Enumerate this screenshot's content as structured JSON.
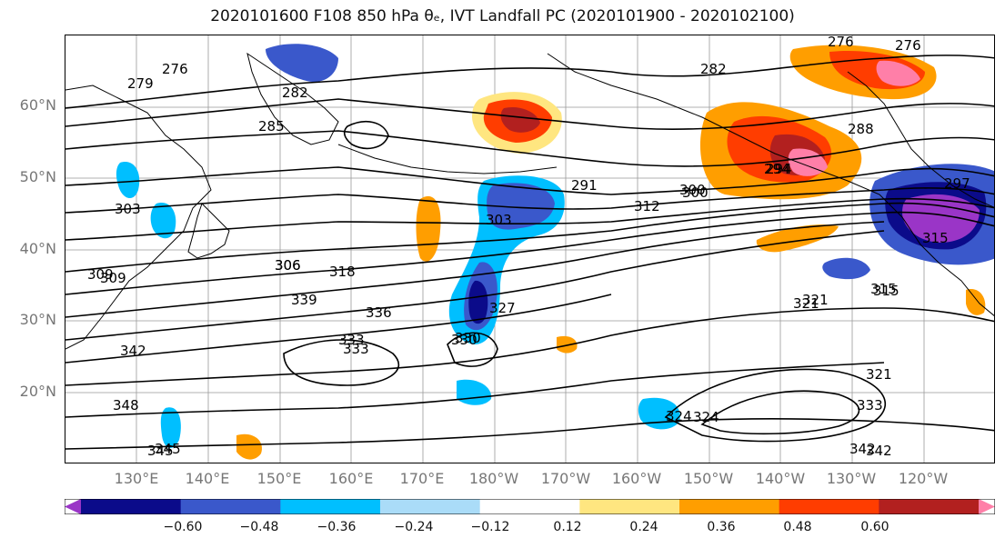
{
  "title": "2020101600 F108 850 hPa θₑ, IVT Landfall PC (2020101900 - 2020102100)",
  "map": {
    "latitude_labels": [
      "60°N",
      "50°N",
      "40°N",
      "30°N",
      "20°N"
    ],
    "longitude_labels": [
      "130°E",
      "140°E",
      "150°E",
      "160°E",
      "170°E",
      "180°W",
      "170°W",
      "160°W",
      "150°W",
      "140°W",
      "130°W",
      "120°W"
    ],
    "contour_labels": [
      "279",
      "276",
      "282",
      "285",
      "276",
      "276",
      "282",
      "288",
      "291",
      "294",
      "297",
      "300",
      "303",
      "306",
      "309",
      "312",
      "315",
      "318",
      "321",
      "324",
      "327",
      "330",
      "333",
      "336",
      "339",
      "342",
      "345",
      "348",
      "303",
      "315",
      "321",
      "333",
      "342",
      "309",
      "321",
      "324",
      "330",
      "333",
      "342",
      "345",
      "294",
      "315",
      "300",
      "306"
    ],
    "colors": {
      "purple": "#9a35c7",
      "navy": "#0b0b8a",
      "blue": "#3a58cb",
      "cyan": "#00bfff",
      "light_blue": "#aadcf8",
      "white": "#ffffff",
      "yellow": "#ffe680",
      "orange": "#ff9e00",
      "red_orange": "#ff3d00",
      "dark_red": "#b2201f",
      "pink": "#ff7fa8"
    }
  },
  "colorbar": {
    "ticks": [
      "−0.60",
      "−0.48",
      "−0.36",
      "−0.24",
      "−0.12",
      "0.12",
      "0.24",
      "0.36",
      "0.48",
      "0.60"
    ],
    "bin_colors": [
      "#9a35c7",
      "#0b0b8a",
      "#3a58cb",
      "#00bfff",
      "#aadcf8",
      "#ffffff",
      "#ffe680",
      "#ff9e00",
      "#ff3d00",
      "#b2201f",
      "#ff7fa8"
    ]
  }
}
